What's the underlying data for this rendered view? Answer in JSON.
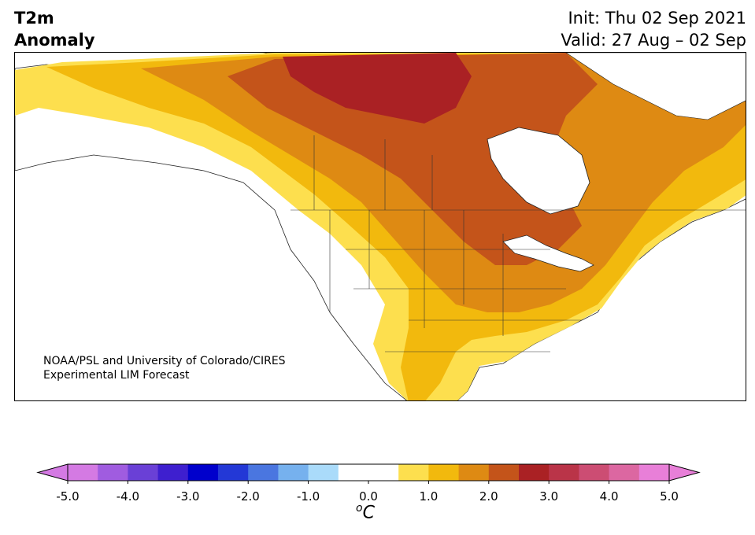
{
  "header": {
    "title_line1": "T2m",
    "title_line2": "Anomaly",
    "init_line": "Init: Thu 02 Sep 2021",
    "valid_line": "Valid: 27 Aug – 02 Sep"
  },
  "credit": {
    "line1": "NOAA/PSL and University of Colorado/CIRES",
    "line2": "Experimental LIM Forecast"
  },
  "colorbar": {
    "unit_base": "C",
    "unit_sup": "o",
    "tick_labels": [
      "-5.0",
      "-4.0",
      "-3.0",
      "-2.0",
      "-1.0",
      "0.0",
      "1.0",
      "2.0",
      "3.0",
      "4.0",
      "5.0"
    ],
    "tick_values": [
      -5,
      -4,
      -3,
      -2,
      -1,
      0,
      1,
      2,
      3,
      4,
      5
    ],
    "range": [
      -5,
      5
    ],
    "step": 0.5,
    "extend": "both",
    "under_color": "#d47ae3",
    "over_color": "#e87fd8",
    "colors": [
      "#d47ae3",
      "#a05ce0",
      "#6a40d6",
      "#3e1fcf",
      "#0000cc",
      "#2338d6",
      "#4a76e0",
      "#76b1ee",
      "#aadbfa",
      "#ffffff",
      "#ffffff",
      "#fddf4e",
      "#f2b90d",
      "#de8a13",
      "#c4541a",
      "#aa2124",
      "#ba3448",
      "#cc4d73",
      "#dc67a1",
      "#e87fd8"
    ]
  },
  "map": {
    "region": "North America",
    "anomaly_colors": {
      "0.5-1.0": "#fddf4e",
      "1.0-1.5": "#f2b90d",
      "1.5-2.0": "#de8a13",
      "2.0-2.5": "#c4541a",
      "2.5-3.0": "#aa2124"
    }
  }
}
